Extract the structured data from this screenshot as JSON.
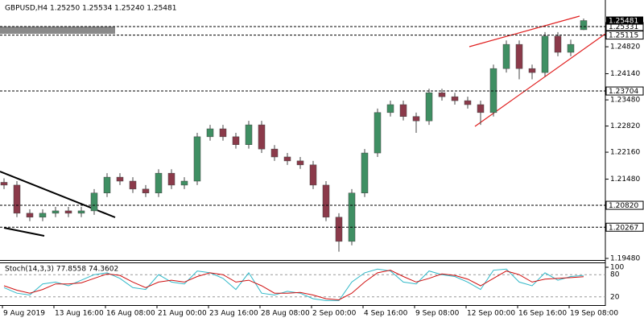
{
  "chart_data": {
    "type": "candlestick",
    "title": "GBPUSD,H4  1.25250 1.25534 1.25240 1.25481",
    "categories": [
      "9 Aug 2019",
      null,
      null,
      null,
      "13 Aug 16:00",
      null,
      null,
      null,
      "16 Aug 08:00",
      null,
      null,
      null,
      "21 Aug 00:00",
      null,
      null,
      null,
      "23 Aug 16:00",
      null,
      null,
      null,
      "28 Aug 08:00",
      null,
      null,
      null,
      "2 Sep 00:00",
      null,
      null,
      null,
      "4 Sep 16:00",
      null,
      null,
      null,
      "9 Sep 08:00",
      null,
      null,
      null,
      "12 Sep 00:00",
      null,
      null,
      null,
      "16 Sep 16:00",
      null,
      null,
      null,
      "19 Sep 08:00",
      null
    ],
    "open": [
      1.214,
      1.2133,
      1.2062,
      1.2052,
      1.2062,
      1.2068,
      1.2062,
      1.2068,
      1.2113,
      1.2153,
      1.2143,
      1.2123,
      1.2113,
      1.2163,
      1.2133,
      1.2143,
      1.2255,
      1.2275,
      1.2255,
      1.2235,
      1.2285,
      1.2224,
      1.2204,
      1.2194,
      1.2184,
      1.2133,
      1.2052,
      1.1991,
      1.2113,
      1.2214,
      1.2316,
      1.2336,
      1.2306,
      1.2295,
      1.2366,
      1.2356,
      1.2346,
      1.2336,
      1.2316,
      1.2427,
      1.2488,
      1.2427,
      1.2417,
      1.2509,
      1.2468,
      1.2525
    ],
    "high": [
      1.215,
      1.2143,
      1.2072,
      1.2072,
      1.2078,
      1.2078,
      1.2078,
      1.2123,
      1.2163,
      1.2163,
      1.2153,
      1.2133,
      1.2173,
      1.2173,
      1.2153,
      1.2265,
      1.2285,
      1.2285,
      1.2265,
      1.2295,
      1.2295,
      1.2234,
      1.2214,
      1.2204,
      1.2194,
      1.2143,
      1.2062,
      1.2123,
      1.2224,
      1.2326,
      1.2346,
      1.2346,
      1.2316,
      1.2376,
      1.2376,
      1.2366,
      1.2356,
      1.2346,
      1.2437,
      1.2498,
      1.2498,
      1.2437,
      1.2519,
      1.2519,
      1.25,
      1.25534
    ],
    "low": [
      1.2123,
      1.2052,
      1.2042,
      1.2042,
      1.2052,
      1.2052,
      1.2052,
      1.2058,
      1.2103,
      1.2133,
      1.2113,
      1.2103,
      1.2103,
      1.2123,
      1.2123,
      1.2133,
      1.2245,
      1.2245,
      1.2225,
      1.2225,
      1.2214,
      1.2194,
      1.2184,
      1.2174,
      1.2123,
      1.2042,
      1.1965,
      1.1981,
      1.2103,
      1.2204,
      1.2306,
      1.2296,
      1.2265,
      1.2285,
      1.2346,
      1.2336,
      1.2326,
      1.2285,
      1.2306,
      1.2417,
      1.24,
      1.24,
      1.2407,
      1.2458,
      1.2458,
      1.2524
    ],
    "close": [
      1.2133,
      1.2062,
      1.2052,
      1.2062,
      1.2068,
      1.2062,
      1.2068,
      1.2113,
      1.2153,
      1.2143,
      1.2123,
      1.2113,
      1.2163,
      1.2133,
      1.2143,
      1.2255,
      1.2275,
      1.2255,
      1.2235,
      1.2285,
      1.2224,
      1.2204,
      1.2194,
      1.2184,
      1.2133,
      1.2052,
      1.1991,
      1.2113,
      1.2214,
      1.2316,
      1.2336,
      1.2306,
      1.2295,
      1.2366,
      1.2356,
      1.2346,
      1.2336,
      1.2316,
      1.2427,
      1.2488,
      1.2427,
      1.2417,
      1.2509,
      1.2468,
      1.2488,
      1.25481
    ],
    "colors": {
      "up": "#3f8f63",
      "down": "#8b3a4a",
      "wick": "#444444"
    },
    "ylim": [
      1.1946,
      1.26
    ],
    "yticks": [
      {
        "value": 1.2482,
        "label": "1.24820"
      },
      {
        "value": 1.2414,
        "label": "1.24140"
      },
      {
        "value": 1.2348,
        "label": "1.23480"
      },
      {
        "value": 1.2282,
        "label": "1.22820"
      },
      {
        "value": 1.2216,
        "label": "1.22160"
      },
      {
        "value": 1.2148,
        "label": "1.21480"
      },
      {
        "value": 1.1948,
        "label": "1.19480"
      }
    ],
    "price_lines": [
      {
        "value": 1.25331,
        "label": "1.25331"
      },
      {
        "value": 1.25115,
        "label": "1.25115"
      },
      {
        "value": 1.23704,
        "label": "1.23704"
      },
      {
        "value": 1.2082,
        "label": "1.20820"
      },
      {
        "value": 1.20267,
        "label": "1.20267"
      }
    ],
    "current_price": {
      "value": 1.25481,
      "label": "1.25481"
    },
    "indicator": {
      "title": "Stoch(14,3,3) 77.8558 74.3602",
      "ylim": [
        0,
        100
      ],
      "yticks": [
        100,
        80,
        20
      ],
      "series": [
        {
          "color": "#30b8c8",
          "values": [
            45,
            30,
            25,
            55,
            60,
            50,
            65,
            80,
            85,
            70,
            45,
            40,
            80,
            60,
            55,
            90,
            85,
            70,
            40,
            85,
            30,
            25,
            35,
            30,
            15,
            10,
            10,
            60,
            85,
            95,
            90,
            60,
            55,
            90,
            80,
            75,
            60,
            40,
            92,
            95,
            60,
            50,
            85,
            65,
            75,
            77.8558
          ]
        },
        {
          "color": "#d01010",
          "values": [
            50,
            38,
            30,
            40,
            55,
            55,
            58,
            70,
            82,
            78,
            60,
            45,
            60,
            65,
            60,
            75,
            85,
            80,
            60,
            65,
            50,
            30,
            30,
            32,
            25,
            15,
            12,
            30,
            60,
            85,
            92,
            75,
            60,
            70,
            82,
            78,
            68,
            50,
            70,
            90,
            80,
            60,
            68,
            70,
            72,
            74.3602
          ]
        }
      ]
    }
  }
}
